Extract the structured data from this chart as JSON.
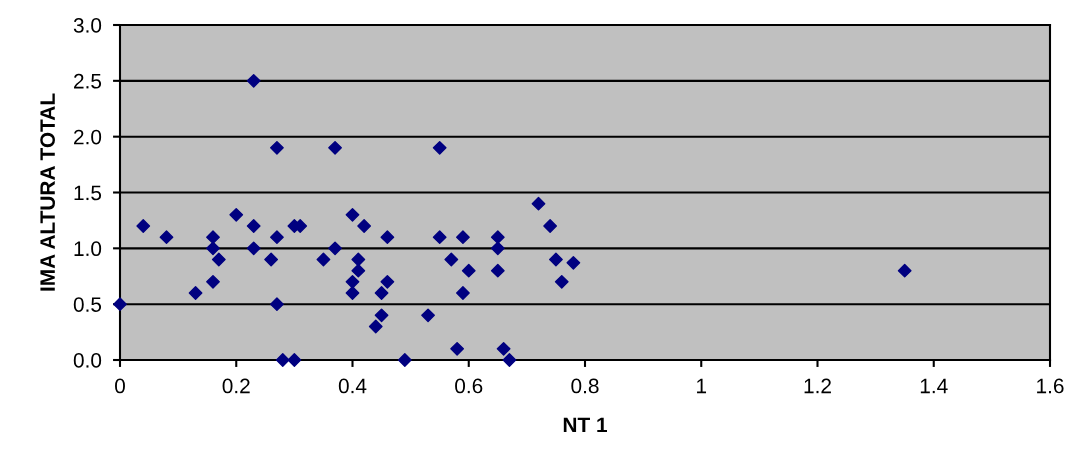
{
  "chart_data": {
    "type": "scatter",
    "xlabel": "NT 1",
    "ylabel": "IMA ALTURA TOTAL",
    "x": [
      0,
      0.04,
      0.08,
      0.13,
      0.16,
      0.16,
      0.16,
      0.17,
      0.2,
      0.23,
      0.23,
      0.23,
      0.26,
      0.27,
      0.27,
      0.27,
      0.28,
      0.3,
      0.3,
      0.31,
      0.35,
      0.37,
      0.37,
      0.4,
      0.4,
      0.4,
      0.41,
      0.41,
      0.42,
      0.44,
      0.45,
      0.45,
      0.46,
      0.46,
      0.49,
      0.53,
      0.55,
      0.55,
      0.57,
      0.58,
      0.59,
      0.59,
      0.6,
      0.65,
      0.65,
      0.65,
      0.66,
      0.67,
      0.72,
      0.74,
      0.75,
      0.76,
      0.78,
      1.35
    ],
    "series": [
      {
        "color": "#000080",
        "values": [
          0.5,
          1.2,
          1.1,
          0.6,
          1.1,
          1.0,
          0.7,
          0.9,
          1.3,
          2.5,
          1.2,
          1.0,
          0.9,
          1.9,
          1.1,
          0.5,
          0.0,
          0.0,
          1.2,
          1.2,
          0.9,
          1.9,
          1.0,
          1.3,
          0.7,
          0.6,
          0.9,
          0.8,
          1.2,
          0.3,
          0.6,
          0.4,
          1.1,
          0.7,
          0.0,
          0.4,
          1.9,
          1.1,
          0.9,
          0.1,
          1.1,
          0.6,
          0.8,
          1.1,
          1.0,
          0.8,
          0.1,
          0.0,
          1.4,
          1.2,
          0.9,
          0.7,
          0.87,
          0.8
        ]
      }
    ],
    "xlim": [
      0,
      1.6
    ],
    "xticks": [
      0,
      0.2,
      0.4,
      0.6,
      0.8,
      1,
      1.2,
      1.4,
      1.6
    ],
    "ylim": [
      0,
      3
    ],
    "yticks": [
      {
        "value": 0,
        "label": "0.0"
      },
      {
        "value": 0.5,
        "label": "0.5"
      },
      {
        "value": 1,
        "label": "1.0"
      },
      {
        "value": 1.5,
        "label": "1.5"
      },
      {
        "value": 2,
        "label": "2.0"
      },
      {
        "value": 2.5,
        "label": "2.5"
      },
      {
        "value": 3,
        "label": "3.0"
      }
    ],
    "grid": "y",
    "marker": "diamond",
    "legend": false
  }
}
